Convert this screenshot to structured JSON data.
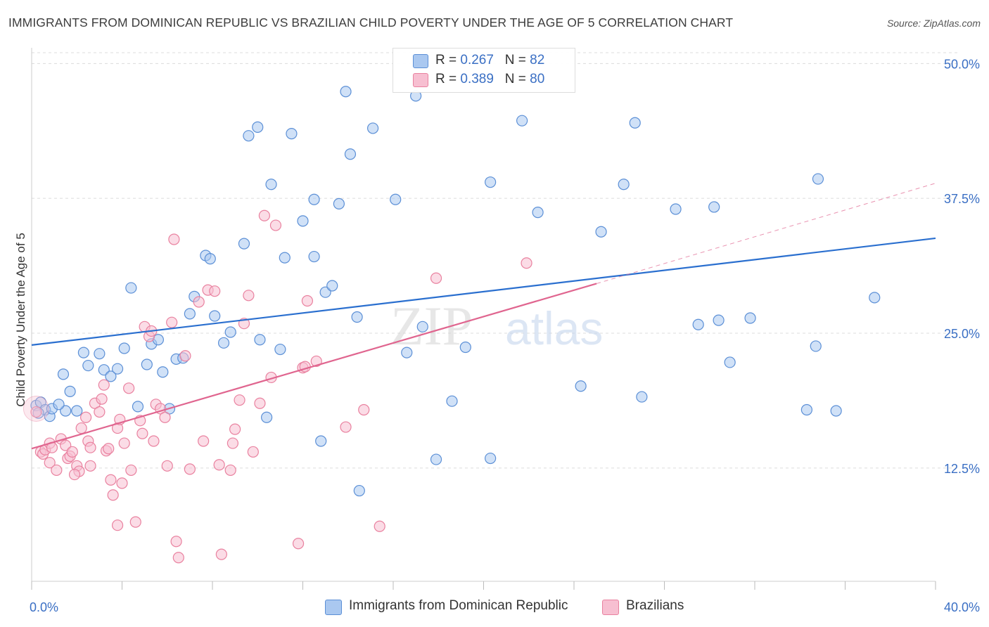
{
  "title": "IMMIGRANTS FROM DOMINICAN REPUBLIC VS BRAZILIAN CHILD POVERTY UNDER THE AGE OF 5 CORRELATION CHART",
  "source": "Source: ZipAtlas.com",
  "legend_top": {
    "rows": [
      {
        "r_label": "R = ",
        "r_value": "0.267",
        "n_label": "N = ",
        "n_value": "82"
      },
      {
        "r_label": "R = ",
        "r_value": "0.389",
        "n_label": "N = ",
        "n_value": "80"
      }
    ]
  },
  "colors": {
    "blue_fill": "#aac8f0",
    "blue_stroke": "#5b8fd6",
    "blue_line": "#2a6fcf",
    "pink_fill": "#f7bfd1",
    "pink_stroke": "#e9819f",
    "pink_line": "#e0658f",
    "grid": "#dcdcdc",
    "tick_label": "#3a6fc4"
  },
  "chart_data": {
    "type": "scatter",
    "title": "IMMIGRANTS FROM DOMINICAN REPUBLIC VS BRAZILIAN CHILD POVERTY UNDER THE AGE OF 5 CORRELATION CHART",
    "xlabel": "",
    "ylabel": "Child Poverty Under the Age of 5",
    "xlim": [
      0,
      40
    ],
    "ylim": [
      2,
      51
    ],
    "x_tick_labels": [
      "0.0%",
      "40.0%"
    ],
    "y_ticks": [
      12.5,
      25.0,
      37.5,
      50.0
    ],
    "y_tick_labels": [
      "12.5%",
      "25.0%",
      "37.5%",
      "50.0%"
    ],
    "watermark": {
      "zip": "ZIP",
      "atlas": "atlas"
    },
    "series": [
      {
        "name": "Immigrants from Dominican Republic",
        "R": 0.267,
        "N": 82,
        "trend": {
          "x0": 0,
          "y0": 23.9,
          "x1": 40,
          "y1": 33.8
        },
        "points": [
          [
            0.2,
            18.3
          ],
          [
            0.4,
            18.6
          ],
          [
            0.6,
            17.9
          ],
          [
            0.8,
            17.3
          ],
          [
            0.9,
            18.0
          ],
          [
            1.5,
            17.8
          ],
          [
            1.4,
            21.2
          ],
          [
            1.7,
            19.6
          ],
          [
            2.0,
            17.8
          ],
          [
            2.3,
            23.2
          ],
          [
            2.5,
            22.0
          ],
          [
            3.0,
            23.1
          ],
          [
            3.2,
            21.6
          ],
          [
            3.5,
            21.0
          ],
          [
            3.8,
            21.7
          ],
          [
            4.1,
            23.6
          ],
          [
            4.4,
            29.2
          ],
          [
            4.7,
            18.2
          ],
          [
            5.1,
            22.1
          ],
          [
            5.3,
            24.0
          ],
          [
            5.6,
            24.4
          ],
          [
            5.8,
            21.4
          ],
          [
            6.1,
            18.0
          ],
          [
            6.4,
            22.6
          ],
          [
            6.7,
            22.7
          ],
          [
            7.0,
            26.8
          ],
          [
            7.2,
            28.4
          ],
          [
            7.7,
            32.2
          ],
          [
            7.9,
            31.9
          ],
          [
            8.1,
            26.6
          ],
          [
            8.5,
            24.1
          ],
          [
            8.8,
            25.1
          ],
          [
            9.4,
            33.3
          ],
          [
            9.6,
            43.3
          ],
          [
            10.0,
            44.1
          ],
          [
            10.1,
            24.4
          ],
          [
            10.4,
            17.2
          ],
          [
            10.6,
            38.8
          ],
          [
            11.0,
            23.5
          ],
          [
            11.2,
            32.0
          ],
          [
            11.5,
            43.5
          ],
          [
            12.0,
            35.4
          ],
          [
            12.5,
            32.1
          ],
          [
            12.5,
            37.4
          ],
          [
            12.8,
            15.0
          ],
          [
            13.0,
            28.8
          ],
          [
            13.3,
            29.4
          ],
          [
            13.6,
            37.0
          ],
          [
            13.9,
            47.4
          ],
          [
            14.1,
            41.6
          ],
          [
            14.4,
            26.5
          ],
          [
            14.5,
            10.4
          ],
          [
            15.1,
            44.0
          ],
          [
            16.1,
            37.4
          ],
          [
            16.6,
            23.2
          ],
          [
            17.0,
            47.0
          ],
          [
            17.3,
            25.6
          ],
          [
            17.9,
            13.3
          ],
          [
            18.6,
            18.7
          ],
          [
            19.2,
            23.7
          ],
          [
            20.3,
            39.0
          ],
          [
            20.3,
            13.4
          ],
          [
            21.7,
            44.7
          ],
          [
            22.4,
            36.2
          ],
          [
            24.3,
            20.1
          ],
          [
            25.2,
            34.4
          ],
          [
            26.2,
            38.8
          ],
          [
            26.7,
            44.5
          ],
          [
            27.0,
            19.1
          ],
          [
            28.5,
            36.5
          ],
          [
            29.5,
            25.8
          ],
          [
            30.2,
            36.7
          ],
          [
            30.4,
            26.2
          ],
          [
            30.9,
            22.3
          ],
          [
            31.8,
            26.4
          ],
          [
            34.3,
            17.9
          ],
          [
            34.7,
            23.8
          ],
          [
            34.8,
            39.3
          ],
          [
            35.6,
            17.8
          ],
          [
            37.3,
            28.3
          ],
          [
            0.3,
            17.6
          ],
          [
            1.2,
            18.4
          ]
        ]
      },
      {
        "name": "Brazilians",
        "R": 0.389,
        "N": 80,
        "trend": {
          "x0": 0,
          "y0": 14.3,
          "x1": 25,
          "y1": 29.6
        },
        "trend_extension": {
          "x0": 25,
          "y0": 29.6,
          "x1": 40,
          "y1": 38.9
        },
        "points": [
          [
            0.2,
            17.7
          ],
          [
            0.4,
            14.0
          ],
          [
            0.5,
            13.8
          ],
          [
            0.6,
            14.2
          ],
          [
            0.8,
            14.8
          ],
          [
            0.8,
            13.0
          ],
          [
            1.1,
            12.3
          ],
          [
            1.3,
            15.2
          ],
          [
            1.5,
            14.6
          ],
          [
            1.6,
            13.4
          ],
          [
            1.7,
            13.6
          ],
          [
            1.8,
            14.0
          ],
          [
            2.0,
            12.7
          ],
          [
            2.1,
            12.2
          ],
          [
            2.2,
            16.2
          ],
          [
            2.4,
            17.2
          ],
          [
            2.5,
            15.0
          ],
          [
            2.6,
            14.4
          ],
          [
            2.8,
            18.5
          ],
          [
            3.0,
            17.7
          ],
          [
            3.1,
            18.9
          ],
          [
            3.2,
            20.2
          ],
          [
            3.3,
            14.1
          ],
          [
            3.4,
            14.3
          ],
          [
            3.5,
            11.4
          ],
          [
            3.6,
            10.0
          ],
          [
            3.8,
            16.2
          ],
          [
            3.9,
            17.0
          ],
          [
            4.0,
            11.1
          ],
          [
            4.1,
            14.8
          ],
          [
            4.3,
            19.9
          ],
          [
            4.4,
            12.3
          ],
          [
            4.6,
            7.5
          ],
          [
            4.8,
            16.9
          ],
          [
            5.0,
            25.6
          ],
          [
            5.2,
            24.7
          ],
          [
            5.3,
            25.2
          ],
          [
            5.4,
            15.0
          ],
          [
            5.5,
            18.4
          ],
          [
            5.7,
            18.0
          ],
          [
            5.9,
            17.2
          ],
          [
            6.0,
            12.7
          ],
          [
            6.2,
            26.0
          ],
          [
            6.3,
            33.7
          ],
          [
            6.4,
            5.7
          ],
          [
            6.5,
            4.2
          ],
          [
            6.8,
            22.9
          ],
          [
            7.0,
            12.4
          ],
          [
            7.4,
            27.9
          ],
          [
            7.6,
            15.0
          ],
          [
            7.8,
            29.0
          ],
          [
            8.1,
            28.9
          ],
          [
            8.3,
            12.8
          ],
          [
            8.4,
            4.5
          ],
          [
            8.8,
            12.3
          ],
          [
            8.9,
            14.8
          ],
          [
            9.0,
            16.1
          ],
          [
            9.2,
            18.8
          ],
          [
            9.4,
            25.9
          ],
          [
            9.6,
            28.5
          ],
          [
            9.8,
            14.0
          ],
          [
            10.1,
            18.5
          ],
          [
            10.3,
            35.9
          ],
          [
            10.6,
            20.9
          ],
          [
            10.8,
            35.0
          ],
          [
            11.8,
            5.5
          ],
          [
            12.0,
            21.8
          ],
          [
            12.1,
            21.9
          ],
          [
            12.2,
            28.0
          ],
          [
            12.6,
            22.4
          ],
          [
            13.9,
            16.3
          ],
          [
            14.7,
            17.9
          ],
          [
            15.4,
            7.1
          ],
          [
            17.9,
            30.1
          ],
          [
            21.9,
            31.5
          ],
          [
            0.9,
            14.4
          ],
          [
            1.9,
            11.9
          ],
          [
            2.6,
            12.7
          ],
          [
            3.8,
            7.2
          ],
          [
            4.9,
            15.7
          ]
        ]
      }
    ]
  },
  "legend_bottom": {
    "items": [
      {
        "label": "Immigrants from Dominican Republic"
      },
      {
        "label": "Brazilians"
      }
    ]
  }
}
